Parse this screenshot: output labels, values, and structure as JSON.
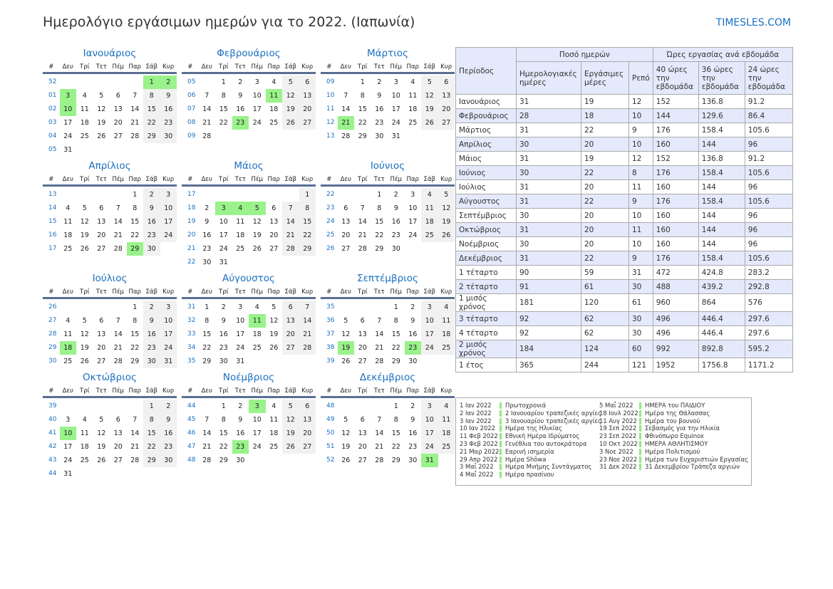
{
  "header": {
    "title": "Ημερολόγιο εργάσιμων ημερών για το 2022. (Ιαπωνία)",
    "brand": "TIMESLES.COM"
  },
  "colors": {
    "accent": "#1a6fc0",
    "holiday": "#99f28a",
    "weekend": "#f1f1f1",
    "table_header": "#e4e9fb"
  },
  "weekday_header": [
    "#",
    "Δευ",
    "Τρί",
    "Τετ",
    "Πέμ",
    "Παρ",
    "Σάβ",
    "Κυρ"
  ],
  "months": [
    {
      "name": "Ιανουάριος",
      "holidays": [
        "1",
        "2",
        "3",
        "10"
      ],
      "weeks": [
        [
          "52",
          "",
          "",
          "",
          "",
          "",
          "1",
          "2"
        ],
        [
          "01",
          "3",
          "4",
          "5",
          "6",
          "7",
          "8",
          "9"
        ],
        [
          "02",
          "10",
          "11",
          "12",
          "13",
          "14",
          "15",
          "16"
        ],
        [
          "03",
          "17",
          "18",
          "19",
          "20",
          "21",
          "22",
          "23"
        ],
        [
          "04",
          "24",
          "25",
          "26",
          "27",
          "28",
          "29",
          "30"
        ],
        [
          "05",
          "31",
          "",
          "",
          "",
          "",
          "",
          ""
        ]
      ]
    },
    {
      "name": "Φεβρουάριος",
      "holidays": [
        "11",
        "23"
      ],
      "weeks": [
        [
          "05",
          "",
          "1",
          "2",
          "3",
          "4",
          "5",
          "6"
        ],
        [
          "06",
          "7",
          "8",
          "9",
          "10",
          "11",
          "12",
          "13"
        ],
        [
          "07",
          "14",
          "15",
          "16",
          "17",
          "18",
          "19",
          "20"
        ],
        [
          "08",
          "21",
          "22",
          "23",
          "24",
          "25",
          "26",
          "27"
        ],
        [
          "09",
          "28",
          "",
          "",
          "",
          "",
          "",
          ""
        ]
      ]
    },
    {
      "name": "Μάρτιος",
      "holidays": [
        "21"
      ],
      "weeks": [
        [
          "09",
          "",
          "1",
          "2",
          "3",
          "4",
          "5",
          "6"
        ],
        [
          "10",
          "7",
          "8",
          "9",
          "10",
          "11",
          "12",
          "13"
        ],
        [
          "11",
          "14",
          "15",
          "16",
          "17",
          "18",
          "19",
          "20"
        ],
        [
          "12",
          "21",
          "22",
          "23",
          "24",
          "25",
          "26",
          "27"
        ],
        [
          "13",
          "28",
          "29",
          "30",
          "31",
          "",
          "",
          ""
        ]
      ]
    },
    {
      "name": "Απρίλιος",
      "holidays": [
        "29"
      ],
      "weeks": [
        [
          "13",
          "",
          "",
          "",
          "",
          "1",
          "2",
          "3"
        ],
        [
          "14",
          "4",
          "5",
          "6",
          "7",
          "8",
          "9",
          "10"
        ],
        [
          "15",
          "11",
          "12",
          "13",
          "14",
          "15",
          "16",
          "17"
        ],
        [
          "16",
          "18",
          "19",
          "20",
          "21",
          "22",
          "23",
          "24"
        ],
        [
          "17",
          "25",
          "26",
          "27",
          "28",
          "29",
          "30",
          ""
        ]
      ]
    },
    {
      "name": "Μάιος",
      "holidays": [
        "3",
        "4",
        "5"
      ],
      "weeks": [
        [
          "17",
          "",
          "",
          "",
          "",
          "",
          "",
          "1"
        ],
        [
          "18",
          "2",
          "3",
          "4",
          "5",
          "6",
          "7",
          "8"
        ],
        [
          "19",
          "9",
          "10",
          "11",
          "12",
          "13",
          "14",
          "15"
        ],
        [
          "20",
          "16",
          "17",
          "18",
          "19",
          "20",
          "21",
          "22"
        ],
        [
          "21",
          "23",
          "24",
          "25",
          "26",
          "27",
          "28",
          "29"
        ],
        [
          "22",
          "30",
          "31",
          "",
          "",
          "",
          "",
          ""
        ]
      ]
    },
    {
      "name": "Ιούνιος",
      "holidays": [],
      "weeks": [
        [
          "22",
          "",
          "",
          "1",
          "2",
          "3",
          "4",
          "5"
        ],
        [
          "23",
          "6",
          "7",
          "8",
          "9",
          "10",
          "11",
          "12"
        ],
        [
          "24",
          "13",
          "14",
          "15",
          "16",
          "17",
          "18",
          "19"
        ],
        [
          "25",
          "20",
          "21",
          "22",
          "23",
          "24",
          "25",
          "26"
        ],
        [
          "26",
          "27",
          "28",
          "29",
          "30",
          "",
          "",
          ""
        ]
      ]
    },
    {
      "name": "Ιούλιος",
      "holidays": [
        "18"
      ],
      "weeks": [
        [
          "26",
          "",
          "",
          "",
          "",
          "1",
          "2",
          "3"
        ],
        [
          "27",
          "4",
          "5",
          "6",
          "7",
          "8",
          "9",
          "10"
        ],
        [
          "28",
          "11",
          "12",
          "13",
          "14",
          "15",
          "16",
          "17"
        ],
        [
          "29",
          "18",
          "19",
          "20",
          "21",
          "22",
          "23",
          "24"
        ],
        [
          "30",
          "25",
          "26",
          "27",
          "28",
          "29",
          "30",
          "31"
        ]
      ]
    },
    {
      "name": "Αύγουστος",
      "holidays": [
        "11"
      ],
      "weeks": [
        [
          "31",
          "1",
          "2",
          "3",
          "4",
          "5",
          "6",
          "7"
        ],
        [
          "32",
          "8",
          "9",
          "10",
          "11",
          "12",
          "13",
          "14"
        ],
        [
          "33",
          "15",
          "16",
          "17",
          "18",
          "19",
          "20",
          "21"
        ],
        [
          "34",
          "22",
          "23",
          "24",
          "25",
          "26",
          "27",
          "28"
        ],
        [
          "35",
          "29",
          "30",
          "31",
          "",
          "",
          "",
          ""
        ]
      ]
    },
    {
      "name": "Σεπτέμβριος",
      "holidays": [
        "19",
        "23"
      ],
      "weeks": [
        [
          "35",
          "",
          "",
          "",
          "1",
          "2",
          "3",
          "4"
        ],
        [
          "36",
          "5",
          "6",
          "7",
          "8",
          "9",
          "10",
          "11"
        ],
        [
          "37",
          "12",
          "13",
          "14",
          "15",
          "16",
          "17",
          "18"
        ],
        [
          "38",
          "19",
          "20",
          "21",
          "22",
          "23",
          "24",
          "25"
        ],
        [
          "39",
          "26",
          "27",
          "28",
          "29",
          "30",
          "",
          ""
        ]
      ]
    },
    {
      "name": "Οκτώβριος",
      "holidays": [
        "10"
      ],
      "weeks": [
        [
          "39",
          "",
          "",
          "",
          "",
          "",
          "1",
          "2"
        ],
        [
          "40",
          "3",
          "4",
          "5",
          "6",
          "7",
          "8",
          "9"
        ],
        [
          "41",
          "10",
          "11",
          "12",
          "13",
          "14",
          "15",
          "16"
        ],
        [
          "42",
          "17",
          "18",
          "19",
          "20",
          "21",
          "22",
          "23"
        ],
        [
          "43",
          "24",
          "25",
          "26",
          "27",
          "28",
          "29",
          "30"
        ],
        [
          "44",
          "31",
          "",
          "",
          "",
          "",
          "",
          ""
        ]
      ]
    },
    {
      "name": "Νοέμβριος",
      "holidays": [
        "3",
        "23"
      ],
      "weeks": [
        [
          "44",
          "",
          "1",
          "2",
          "3",
          "4",
          "5",
          "6"
        ],
        [
          "45",
          "7",
          "8",
          "9",
          "10",
          "11",
          "12",
          "13"
        ],
        [
          "46",
          "14",
          "15",
          "16",
          "17",
          "18",
          "19",
          "20"
        ],
        [
          "47",
          "21",
          "22",
          "23",
          "24",
          "25",
          "26",
          "27"
        ],
        [
          "48",
          "28",
          "29",
          "30",
          "",
          "",
          "",
          ""
        ]
      ]
    },
    {
      "name": "Δεκέμβριος",
      "holidays": [
        "31"
      ],
      "weeks": [
        [
          "48",
          "",
          "",
          "",
          "1",
          "2",
          "3",
          "4"
        ],
        [
          "49",
          "5",
          "6",
          "7",
          "8",
          "9",
          "10",
          "11"
        ],
        [
          "50",
          "12",
          "13",
          "14",
          "15",
          "16",
          "17",
          "18"
        ],
        [
          "51",
          "19",
          "20",
          "21",
          "22",
          "23",
          "24",
          "25"
        ],
        [
          "52",
          "26",
          "27",
          "28",
          "29",
          "30",
          "31",
          ""
        ]
      ]
    }
  ],
  "stats": {
    "period_label": "Περίοδος",
    "days_group": "Ποσό ημερών",
    "hours_group": "Ώρες εργασίας ανά εβδομάδα",
    "columns": [
      "Ημερολογιακές ημέρες",
      "Εργάσιμες μέρες",
      "Ρεπό",
      "40 ώρες την εβδομάδα",
      "36 ώρες την εβδομάδα",
      "24 ώρες την εβδομάδα"
    ],
    "rows": [
      [
        "Ιανουάριος",
        "31",
        "19",
        "12",
        "152",
        "136.8",
        "91.2"
      ],
      [
        "Φεβρουάριος",
        "28",
        "18",
        "10",
        "144",
        "129.6",
        "86.4"
      ],
      [
        "Μάρτιος",
        "31",
        "22",
        "9",
        "176",
        "158.4",
        "105.6"
      ],
      [
        "Απρίλιος",
        "30",
        "20",
        "10",
        "160",
        "144",
        "96"
      ],
      [
        "Μάιος",
        "31",
        "19",
        "12",
        "152",
        "136.8",
        "91.2"
      ],
      [
        "Ιούνιος",
        "30",
        "22",
        "8",
        "176",
        "158.4",
        "105.6"
      ],
      [
        "Ιούλιος",
        "31",
        "20",
        "11",
        "160",
        "144",
        "96"
      ],
      [
        "Αύγουστος",
        "31",
        "22",
        "9",
        "176",
        "158.4",
        "105.6"
      ],
      [
        "Σεπτέμβριος",
        "30",
        "20",
        "10",
        "160",
        "144",
        "96"
      ],
      [
        "Οκτώβριος",
        "31",
        "20",
        "11",
        "160",
        "144",
        "96"
      ],
      [
        "Νοέμβριος",
        "30",
        "20",
        "10",
        "160",
        "144",
        "96"
      ],
      [
        "Δεκέμβριος",
        "31",
        "22",
        "9",
        "176",
        "158.4",
        "105.6"
      ],
      [
        "1 τέταρτο",
        "90",
        "59",
        "31",
        "472",
        "424.8",
        "283.2"
      ],
      [
        "2 τέταρτο",
        "91",
        "61",
        "30",
        "488",
        "439.2",
        "292.8"
      ],
      [
        "1 μισός χρόνος",
        "181",
        "120",
        "61",
        "960",
        "864",
        "576"
      ],
      [
        "3 τέταρτο",
        "92",
        "62",
        "30",
        "496",
        "446.4",
        "297.6"
      ],
      [
        "4 τέταρτο",
        "92",
        "62",
        "30",
        "496",
        "446.4",
        "297.6"
      ],
      [
        "2 μισός χρόνος",
        "184",
        "124",
        "60",
        "992",
        "892.8",
        "595.2"
      ],
      [
        "1 έτος",
        "365",
        "244",
        "121",
        "1952",
        "1756.8",
        "1171.2"
      ]
    ]
  },
  "holiday_list": [
    [
      [
        "1 Ιαν 2022",
        "Πρωτοχρονιά"
      ],
      [
        "2 Ιαν 2022",
        "2 Ιανουαρίου τραπεζικές αργίες"
      ],
      [
        "3 Ιαν 2022",
        "3 Ιανουαρίου τραπεζικές αργίες"
      ],
      [
        "10 Ιαν 2022",
        "Ημέρα της Ηλικίας"
      ],
      [
        "11 Φεβ 2022",
        "Εθνική Ημέρα Ιδρύματος"
      ],
      [
        "23 Φεβ 2022",
        "Γενέθλια του αυτοκράτορα"
      ],
      [
        "21 Μαρ 2022",
        "Εαρινή ισημερία"
      ],
      [
        "29 Απρ 2022",
        "Ημέρα Shōwa"
      ],
      [
        "3 Μαΐ 2022",
        "Ημέρα Μνήμης Συντάγματος"
      ],
      [
        "4 Μαΐ 2022",
        "Ημέρα πρασίνου"
      ]
    ],
    [
      [
        "5 Μαΐ 2022",
        "ΗΜΕΡΑ του ΠΑΙΔΙΟΥ"
      ],
      [
        "18 Ιουλ 2022",
        "Ημέρα της Θάλασσας"
      ],
      [
        "11 Αυγ 2022",
        "Ημέρα του βουνού"
      ],
      [
        "19 Σεπ 2022",
        "Σεβασμός για την Ηλικία"
      ],
      [
        "23 Σεπ 2022",
        "Φθινόπωρο Equinox"
      ],
      [
        "10 Οκτ 2022",
        "ΗΜΕΡΑ ΑΘΛΗΤΙΣΜΟΥ"
      ],
      [
        "3 Νοε 2022",
        "Ημέρα Πολιτισμού"
      ],
      [
        "23 Νοε 2022",
        "Ημέρα των Ευχαριστιών Εργασίας"
      ],
      [
        "31 Δεκ 2022",
        "31 Δεκεμβρίου Τράπεζα αργιών"
      ]
    ]
  ]
}
